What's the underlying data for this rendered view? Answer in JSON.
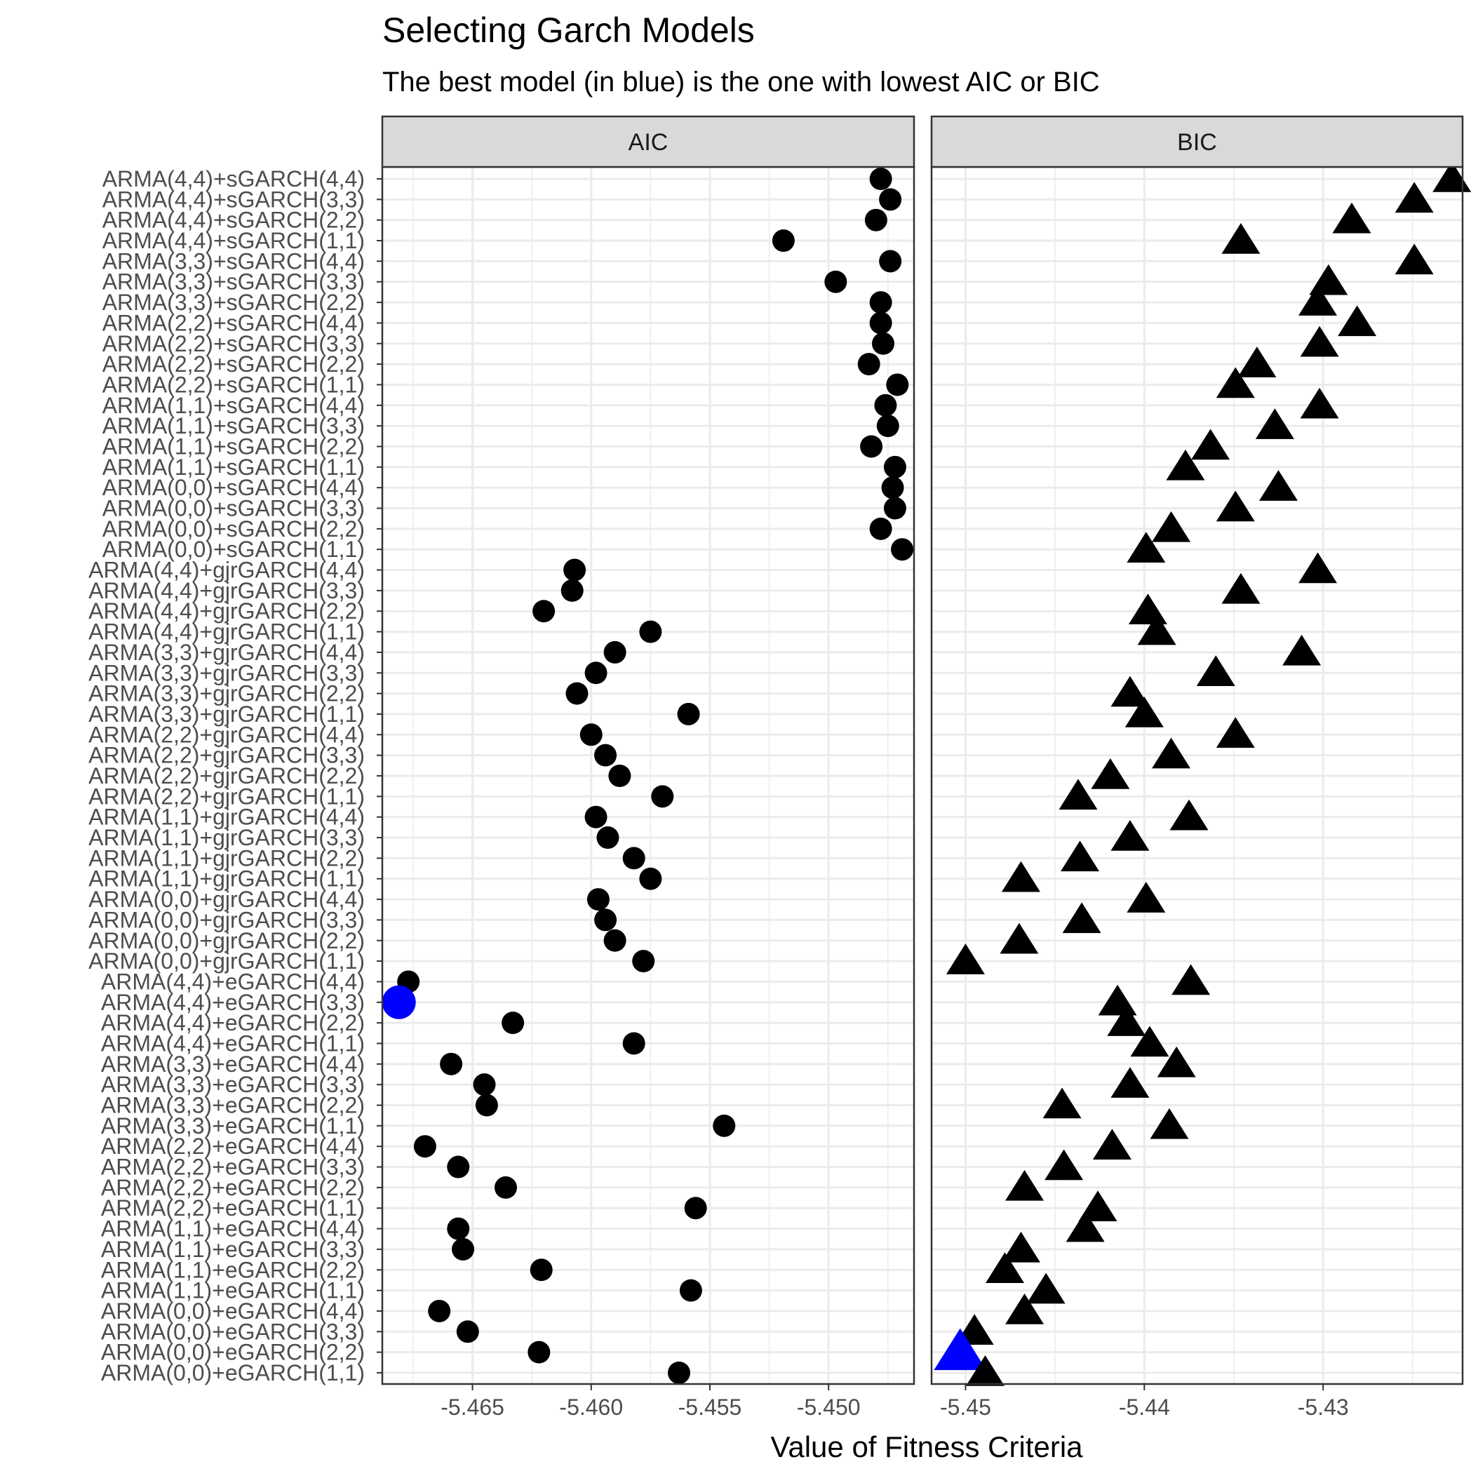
{
  "title": "Selecting Garch Models",
  "subtitle": "The best model (in blue) is the one with lowest AIC or BIC",
  "xlabel": "Value of Fitness Criteria",
  "colors": {
    "point": "#000000",
    "best": "#0000ff",
    "strip_bg": "#d9d9d9",
    "grid": "#ebebeb"
  },
  "chart_data": {
    "type": "scatter",
    "title": "Selecting Garch Models",
    "subtitle": "The best model (in blue) is the one with lowest AIC or BIC",
    "xlabel": "Value of Fitness Criteria",
    "ylabel": "",
    "grid": true,
    "categories": [
      "ARMA(4,4)+sGARCH(4,4)",
      "ARMA(4,4)+sGARCH(3,3)",
      "ARMA(4,4)+sGARCH(2,2)",
      "ARMA(4,4)+sGARCH(1,1)",
      "ARMA(3,3)+sGARCH(4,4)",
      "ARMA(3,3)+sGARCH(3,3)",
      "ARMA(3,3)+sGARCH(2,2)",
      "ARMA(2,2)+sGARCH(4,4)",
      "ARMA(2,2)+sGARCH(3,3)",
      "ARMA(2,2)+sGARCH(2,2)",
      "ARMA(2,2)+sGARCH(1,1)",
      "ARMA(1,1)+sGARCH(4,4)",
      "ARMA(1,1)+sGARCH(3,3)",
      "ARMA(1,1)+sGARCH(2,2)",
      "ARMA(1,1)+sGARCH(1,1)",
      "ARMA(0,0)+sGARCH(4,4)",
      "ARMA(0,0)+sGARCH(3,3)",
      "ARMA(0,0)+sGARCH(2,2)",
      "ARMA(0,0)+sGARCH(1,1)",
      "ARMA(4,4)+gjrGARCH(4,4)",
      "ARMA(4,4)+gjrGARCH(3,3)",
      "ARMA(4,4)+gjrGARCH(2,2)",
      "ARMA(4,4)+gjrGARCH(1,1)",
      "ARMA(3,3)+gjrGARCH(4,4)",
      "ARMA(3,3)+gjrGARCH(3,3)",
      "ARMA(3,3)+gjrGARCH(2,2)",
      "ARMA(3,3)+gjrGARCH(1,1)",
      "ARMA(2,2)+gjrGARCH(4,4)",
      "ARMA(2,2)+gjrGARCH(3,3)",
      "ARMA(2,2)+gjrGARCH(2,2)",
      "ARMA(2,2)+gjrGARCH(1,1)",
      "ARMA(1,1)+gjrGARCH(4,4)",
      "ARMA(1,1)+gjrGARCH(3,3)",
      "ARMA(1,1)+gjrGARCH(2,2)",
      "ARMA(1,1)+gjrGARCH(1,1)",
      "ARMA(0,0)+gjrGARCH(4,4)",
      "ARMA(0,0)+gjrGARCH(3,3)",
      "ARMA(0,0)+gjrGARCH(2,2)",
      "ARMA(0,0)+gjrGARCH(1,1)",
      "ARMA(4,4)+eGARCH(4,4)",
      "ARMA(4,4)+eGARCH(3,3)",
      "ARMA(4,4)+eGARCH(2,2)",
      "ARMA(4,4)+eGARCH(1,1)",
      "ARMA(3,3)+eGARCH(4,4)",
      "ARMA(3,3)+eGARCH(3,3)",
      "ARMA(3,3)+eGARCH(2,2)",
      "ARMA(3,3)+eGARCH(1,1)",
      "ARMA(2,2)+eGARCH(4,4)",
      "ARMA(2,2)+eGARCH(3,3)",
      "ARMA(2,2)+eGARCH(2,2)",
      "ARMA(2,2)+eGARCH(1,1)",
      "ARMA(1,1)+eGARCH(4,4)",
      "ARMA(1,1)+eGARCH(3,3)",
      "ARMA(1,1)+eGARCH(2,2)",
      "ARMA(1,1)+eGARCH(1,1)",
      "ARMA(0,0)+eGARCH(4,4)",
      "ARMA(0,0)+eGARCH(3,3)",
      "ARMA(0,0)+eGARCH(2,2)",
      "ARMA(0,0)+eGARCH(1,1)"
    ],
    "panels": [
      {
        "name": "AIC",
        "shape": "circle",
        "xlim": [
          -5.4688,
          -5.4464
        ],
        "xticks": [
          -5.465,
          -5.46,
          -5.455,
          -5.45
        ],
        "xtick_labels": [
          "-5.465",
          "-5.460",
          "-5.455",
          "-5.450"
        ],
        "best_index": 40,
        "values": [
          -5.4478,
          -5.4474,
          -5.448,
          -5.4519,
          -5.4474,
          -5.4497,
          -5.4478,
          -5.4478,
          -5.4477,
          -5.4483,
          -5.4471,
          -5.4476,
          -5.4475,
          -5.4482,
          -5.4472,
          -5.4473,
          -5.4472,
          -5.4478,
          -5.4469,
          -5.4607,
          -5.4608,
          -5.462,
          -5.4575,
          -5.459,
          -5.4598,
          -5.4606,
          -5.4559,
          -5.46,
          -5.4594,
          -5.4588,
          -5.457,
          -5.4598,
          -5.4593,
          -5.4582,
          -5.4575,
          -5.4597,
          -5.4594,
          -5.459,
          -5.4578,
          -5.4677,
          -5.4681,
          -5.4633,
          -5.4582,
          -5.4659,
          -5.4645,
          -5.4644,
          -5.4544,
          -5.467,
          -5.4656,
          -5.4636,
          -5.4556,
          -5.4656,
          -5.4654,
          -5.4621,
          -5.4558,
          -5.4664,
          -5.4652,
          -5.4622,
          -5.4563
        ]
      },
      {
        "name": "BIC",
        "shape": "triangle",
        "xlim": [
          -5.4519,
          -5.4222
        ],
        "xticks": [
          -5.45,
          -5.44,
          -5.43
        ],
        "xtick_labels": [
          "-5.45",
          "-5.44",
          "-5.43"
        ],
        "best_index": 57,
        "values": [
          -5.4228,
          -5.4249,
          -5.4284,
          -5.4346,
          -5.4249,
          -5.4297,
          -5.4303,
          -5.4281,
          -5.4302,
          -5.4337,
          -5.4349,
          -5.4302,
          -5.4327,
          -5.4363,
          -5.4377,
          -5.4325,
          -5.4349,
          -5.4385,
          -5.4399,
          -5.4303,
          -5.4346,
          -5.4398,
          -5.4393,
          -5.4312,
          -5.436,
          -5.4408,
          -5.44,
          -5.4349,
          -5.4385,
          -5.4419,
          -5.4437,
          -5.4375,
          -5.4408,
          -5.4436,
          -5.4469,
          -5.4399,
          -5.4435,
          -5.447,
          -5.45,
          -5.4374,
          -5.4415,
          -5.441,
          -5.4397,
          -5.4382,
          -5.4408,
          -5.4446,
          -5.4386,
          -5.4418,
          -5.4445,
          -5.4467,
          -5.4426,
          -5.4433,
          -5.4469,
          -5.4478,
          -5.4455,
          -5.4467,
          -5.4495,
          -5.4503,
          -5.4489
        ]
      }
    ]
  }
}
